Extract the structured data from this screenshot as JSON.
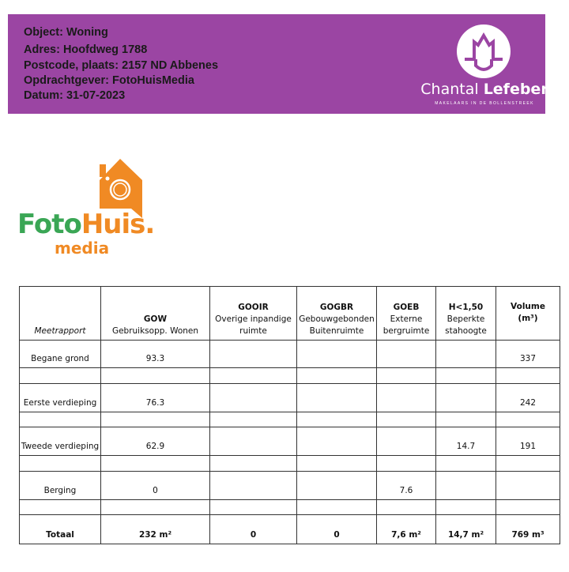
{
  "header": {
    "object": "Object: Woning",
    "adres": "Adres: Hoofdweg 1788",
    "postcode": "Postcode, plaats: 2157 ND Abbenes",
    "opdrachtgever": "Opdrachtgever: FotoHuisMedia",
    "datum": "Datum: 31-07-2023",
    "bg_color": "#9b45a3"
  },
  "logo_chantal": {
    "name_light": "Chantal ",
    "name_bold": "Lefeber",
    "tagline": "MAKELAARS IN DE BOLLENSTREEK"
  },
  "logo_fotohuis": {
    "foto": "Foto",
    "huis": "Huis.",
    "media": "media",
    "green": "#3aa655",
    "orange": "#f08a24"
  },
  "table": {
    "headers": [
      {
        "code": "",
        "label": "Meetrapport"
      },
      {
        "code": "GOW",
        "label": "Gebruiksopp. Wonen"
      },
      {
        "code": "GOOIR",
        "label": "Overige inpandige ruimte"
      },
      {
        "code": "GOGBR",
        "label": "Gebouwgebonden Buitenruimte"
      },
      {
        "code": "GOEB",
        "label": "Externe bergruimte"
      },
      {
        "code": "H<1,50",
        "label": "Beperkte stahoogte"
      },
      {
        "code": "Volume",
        "label": "(m³)"
      }
    ],
    "rows": [
      [
        "Begane grond",
        "93.3",
        "",
        "",
        "",
        "",
        "337"
      ],
      [
        "Eerste verdieping",
        "76.3",
        "",
        "",
        "",
        "",
        "242"
      ],
      [
        "Tweede verdieping",
        "62.9",
        "",
        "",
        "",
        "14.7",
        "191"
      ],
      [
        "Berging",
        "0",
        "",
        "",
        "7.6",
        "",
        ""
      ]
    ],
    "total": [
      "Totaal",
      "232 m²",
      "0",
      "0",
      "7,6 m²",
      "14,7 m²",
      "769 m³"
    ]
  }
}
